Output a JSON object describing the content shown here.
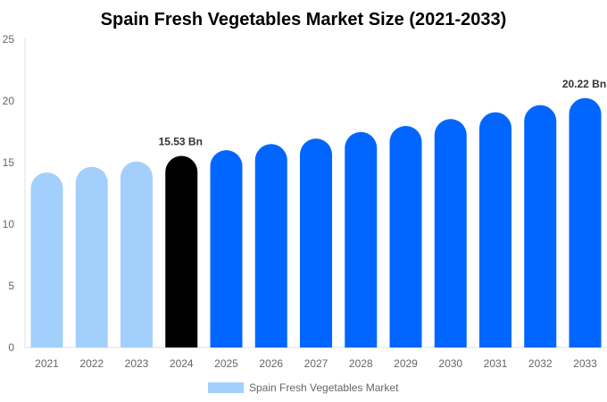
{
  "chart_data": {
    "type": "bar",
    "title": "Spain Fresh Vegetables Market Size (2021-2033)",
    "xlabel": "",
    "ylabel": "",
    "ylim": [
      0,
      25
    ],
    "yticks": [
      0,
      5,
      10,
      15,
      20,
      25
    ],
    "grid": false,
    "legend_position": "bottom",
    "categories": [
      "2021",
      "2022",
      "2023",
      "2024",
      "2025",
      "2026",
      "2027",
      "2028",
      "2029",
      "2030",
      "2031",
      "2032",
      "2033"
    ],
    "series": [
      {
        "name": "Spain Fresh Vegetables Market",
        "values": [
          14.19,
          14.65,
          15.08,
          15.53,
          16.0,
          16.49,
          16.94,
          17.47,
          17.96,
          18.52,
          19.07,
          19.65,
          20.22
        ]
      }
    ],
    "bar_colors": [
      "#a3cffd",
      "#a3cffd",
      "#a3cffd",
      "#000000",
      "#0066ff",
      "#0066ff",
      "#0066ff",
      "#0066ff",
      "#0066ff",
      "#0066ff",
      "#0066ff",
      "#0066ff",
      "#0066ff"
    ],
    "legend_color": "#a3cffd",
    "annotations": [
      {
        "category": "2024",
        "text": "15.53 Bn"
      },
      {
        "category": "2033",
        "text": "20.22 Bn"
      }
    ]
  }
}
